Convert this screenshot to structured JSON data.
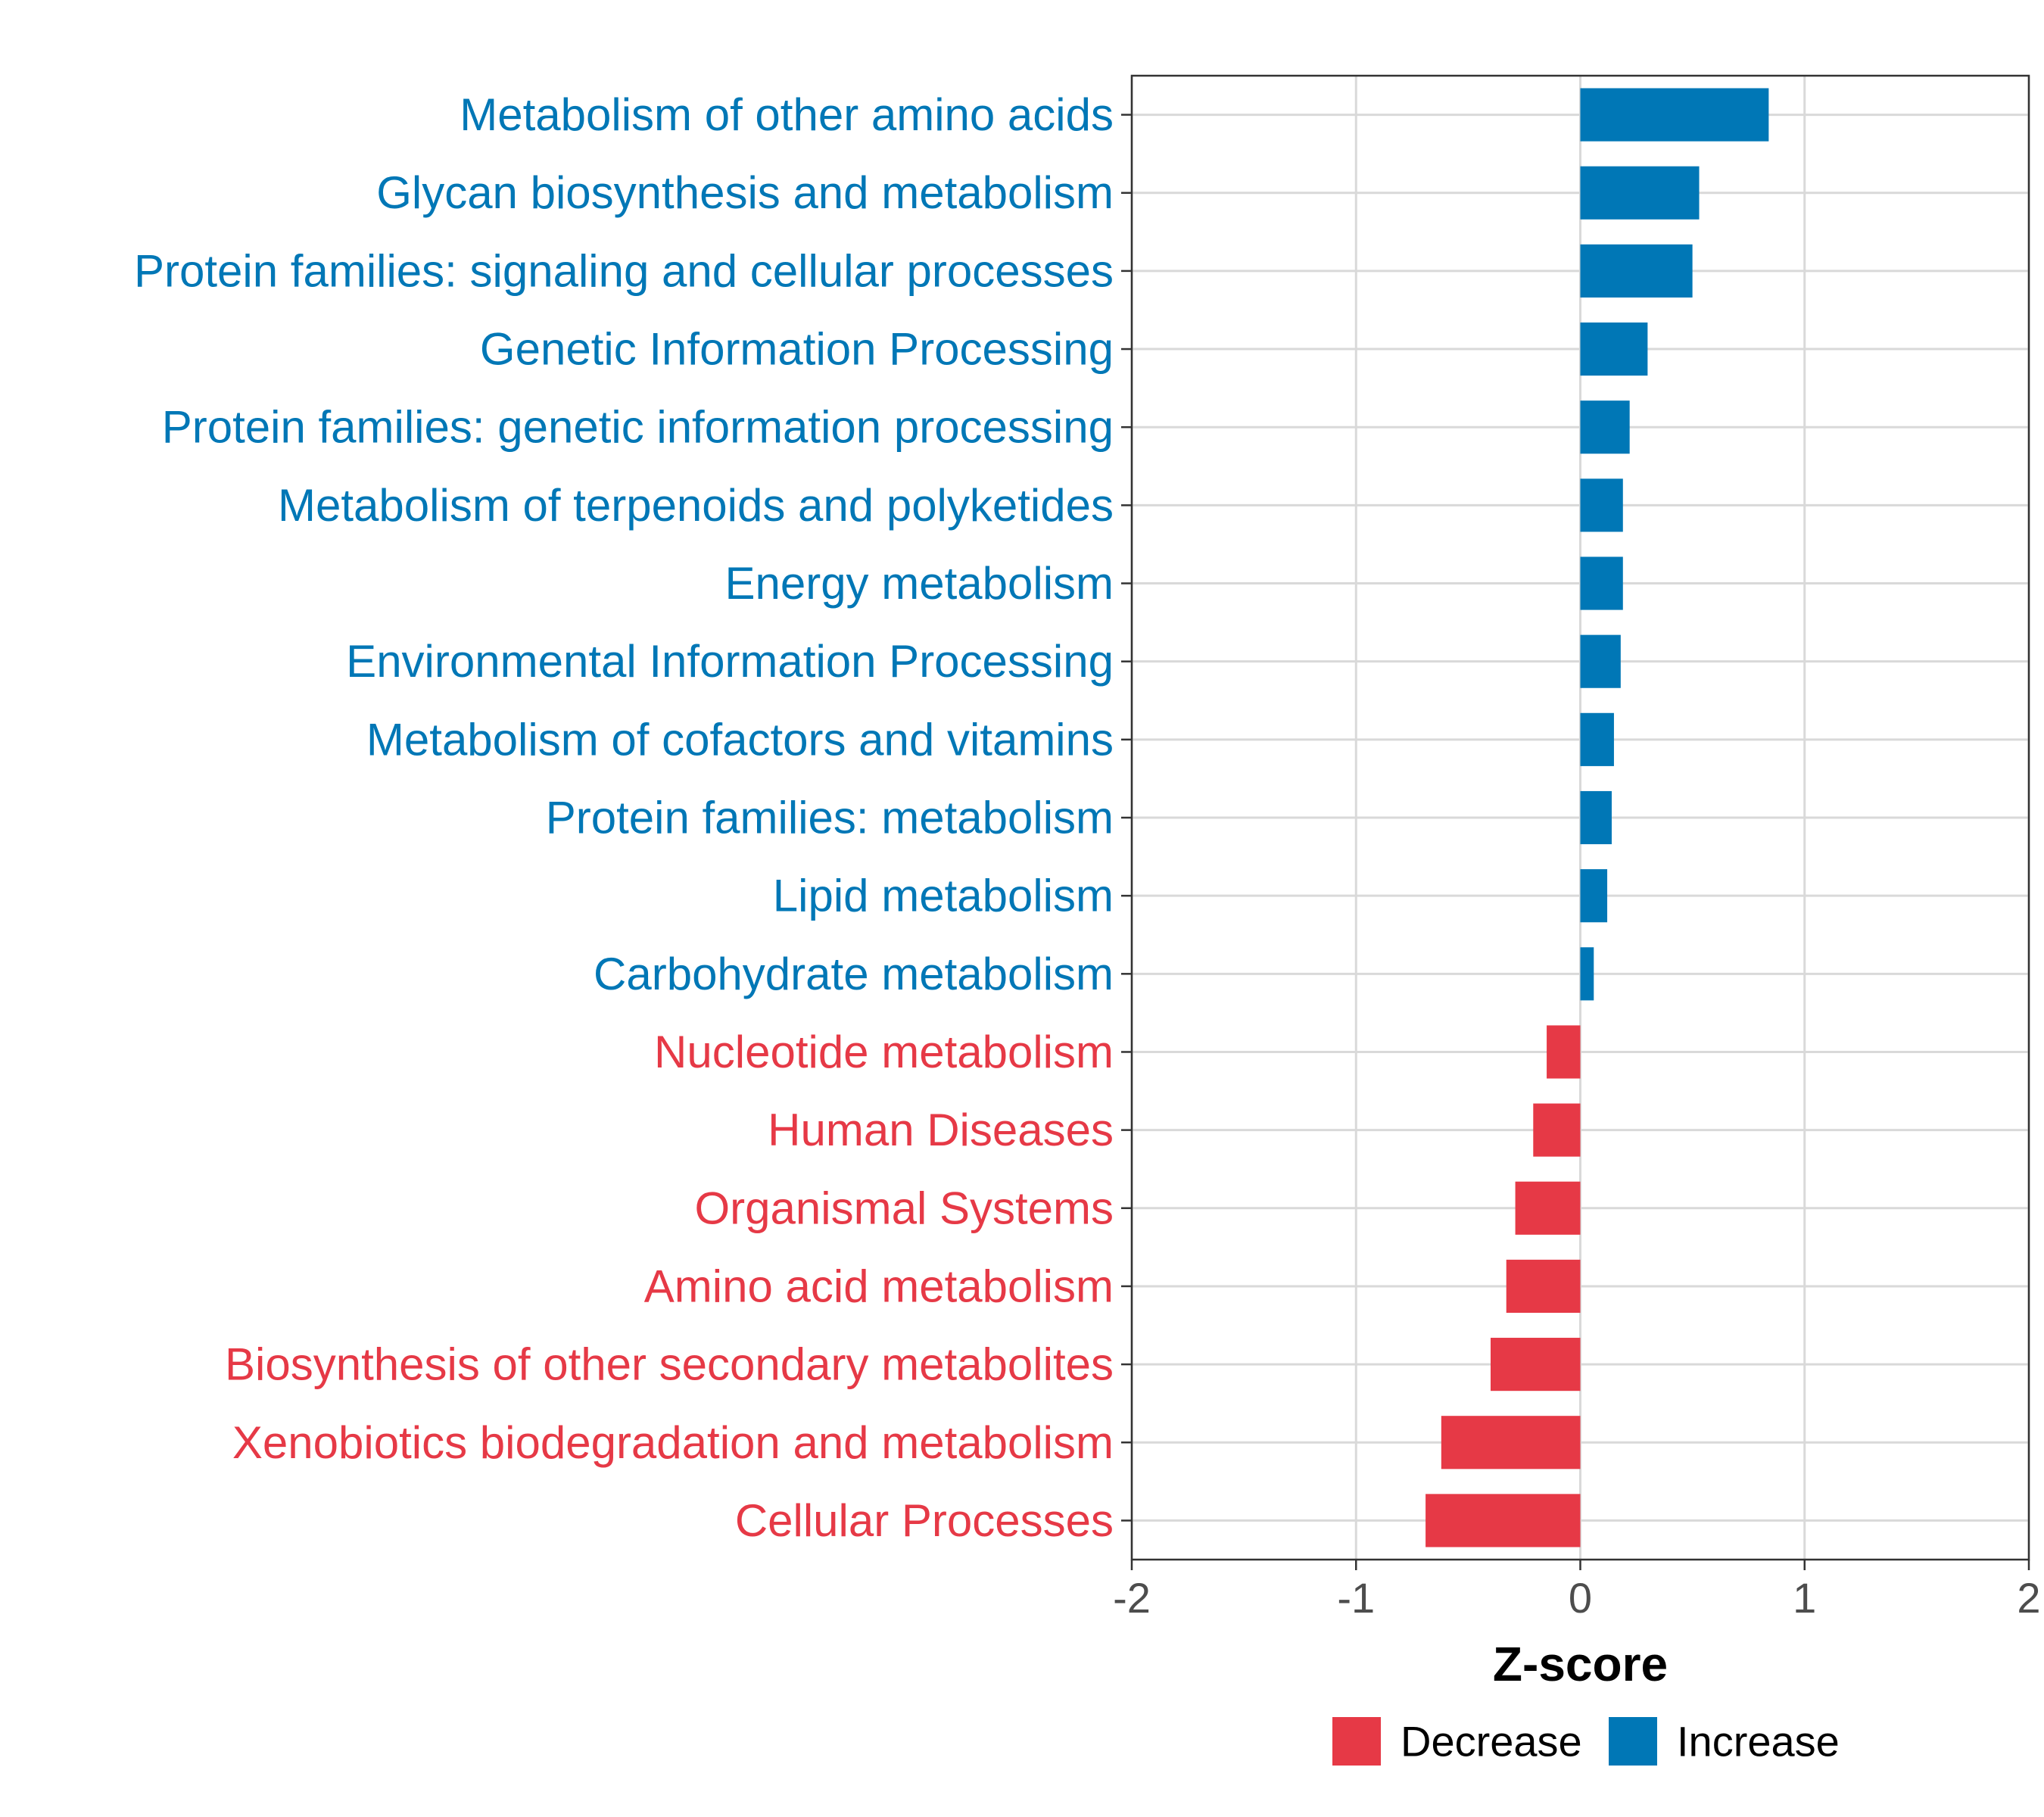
{
  "chart_data": {
    "type": "bar",
    "orientation": "horizontal",
    "categories": [
      "Metabolism of other amino acids",
      "Glycan biosynthesis and metabolism",
      "Protein families: signaling and cellular processes",
      "Genetic Information Processing",
      "Protein families: genetic information processing",
      "Metabolism of terpenoids and polyketides",
      "Energy metabolism",
      "Environmental Information Processing",
      "Metabolism of cofactors and vitamins",
      "Protein families: metabolism",
      "Lipid metabolism",
      "Carbohydrate metabolism",
      "Nucleotide metabolism",
      "Human Diseases",
      "Organismal Systems",
      "Amino acid metabolism",
      "Biosynthesis of other secondary metabolites",
      "Xenobiotics biodegradation and metabolism",
      "Cellular Processes"
    ],
    "values": [
      0.84,
      0.53,
      0.5,
      0.3,
      0.22,
      0.19,
      0.19,
      0.18,
      0.15,
      0.14,
      0.12,
      0.06,
      -0.15,
      -0.21,
      -0.29,
      -0.33,
      -0.4,
      -0.62,
      -0.69
    ],
    "groups": [
      "Increase",
      "Increase",
      "Increase",
      "Increase",
      "Increase",
      "Increase",
      "Increase",
      "Increase",
      "Increase",
      "Increase",
      "Increase",
      "Increase",
      "Decrease",
      "Decrease",
      "Decrease",
      "Decrease",
      "Decrease",
      "Decrease",
      "Decrease"
    ],
    "xlabel": "Z-score",
    "ylabel": "",
    "xlim": [
      -2,
      2
    ],
    "xticks": [
      -2,
      -1,
      0,
      1,
      2
    ],
    "xtick_labels": [
      "-2",
      "-1",
      "0",
      "1",
      "2"
    ],
    "grid": true,
    "legend": {
      "position": "bottom",
      "entries": [
        {
          "label": "Decrease",
          "color": "#e63946"
        },
        {
          "label": "Increase",
          "color": "#0077b6"
        }
      ]
    },
    "colors": {
      "Increase": "#0077b6",
      "Decrease": "#e63946"
    }
  }
}
